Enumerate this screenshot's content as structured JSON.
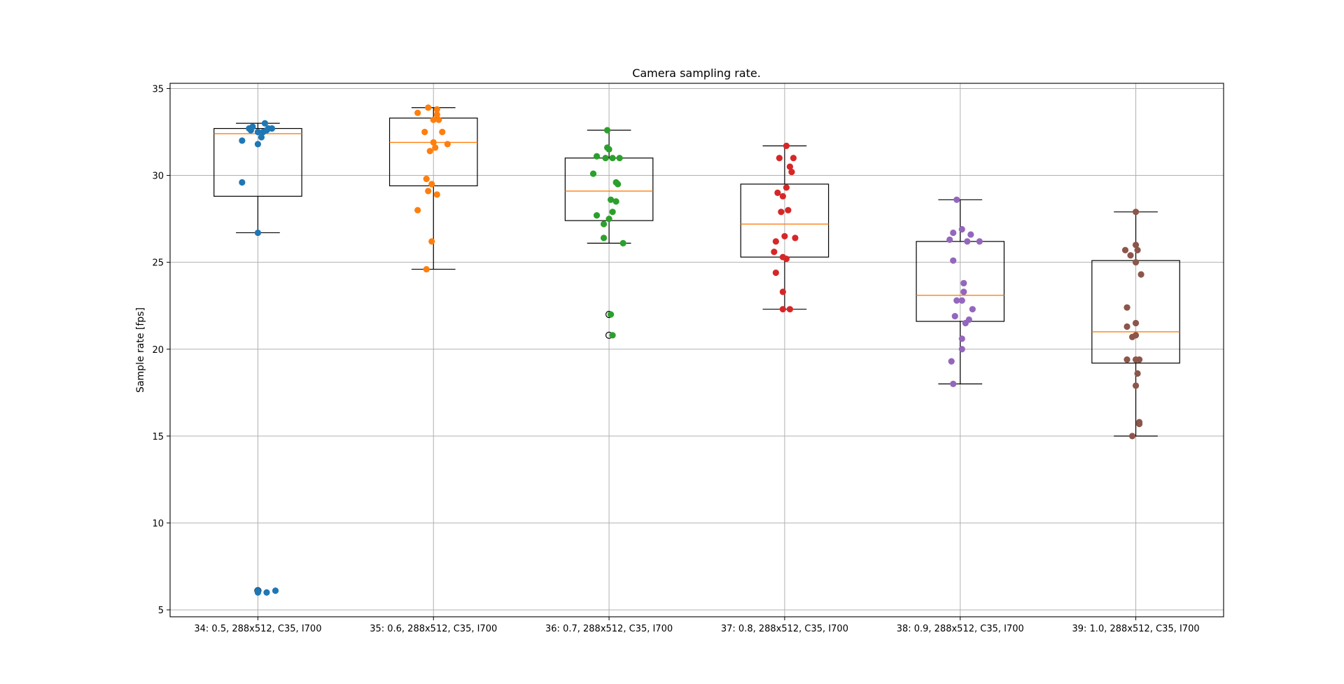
{
  "chart_data": {
    "type": "box",
    "title": "Camera sampling rate.",
    "ylabel": "Sample rate [fps]",
    "xlabel": "",
    "ylim": [
      4.6,
      35.3
    ],
    "yticks": [
      5,
      10,
      15,
      20,
      25,
      30,
      35
    ],
    "grid": true,
    "series": [
      {
        "label": "34: 0.5, 288x512, C35, I700",
        "color": "#1f77b4",
        "box": {
          "whislo": 26.7,
          "q1": 28.8,
          "med": 32.4,
          "q3": 32.7,
          "whishi": 33.0
        },
        "fliers": [
          6.1
        ],
        "points": [
          {
            "jx": -0.09,
            "y": 32.0
          },
          {
            "jx": -0.09,
            "y": 29.6
          },
          {
            "jx": 0.0,
            "y": 26.7
          },
          {
            "jx": 0.0,
            "y": 31.8
          },
          {
            "jx": 0.02,
            "y": 32.2
          },
          {
            "jx": -0.05,
            "y": 32.7
          },
          {
            "jx": -0.03,
            "y": 32.8
          },
          {
            "jx": 0.0,
            "y": 32.5
          },
          {
            "jx": 0.03,
            "y": 32.5
          },
          {
            "jx": 0.06,
            "y": 32.7
          },
          {
            "jx": 0.04,
            "y": 33.0
          },
          {
            "jx": 0.08,
            "y": 32.7
          },
          {
            "jx": 0.05,
            "y": 32.6
          },
          {
            "jx": -0.04,
            "y": 32.6
          },
          {
            "jx": 0.0,
            "y": 6.1
          },
          {
            "jx": 0.0,
            "y": 6.0
          },
          {
            "jx": 0.05,
            "y": 6.0
          },
          {
            "jx": 0.1,
            "y": 6.1
          }
        ]
      },
      {
        "label": "35: 0.6, 288x512, C35, I700",
        "color": "#ff7f0e",
        "box": {
          "whislo": 24.6,
          "q1": 29.4,
          "med": 31.9,
          "q3": 33.3,
          "whishi": 33.9
        },
        "fliers": [],
        "points": [
          {
            "jx": -0.09,
            "y": 33.6
          },
          {
            "jx": -0.03,
            "y": 33.9
          },
          {
            "jx": 0.0,
            "y": 33.2
          },
          {
            "jx": 0.02,
            "y": 33.8
          },
          {
            "jx": 0.03,
            "y": 33.2
          },
          {
            "jx": 0.02,
            "y": 33.5
          },
          {
            "jx": -0.05,
            "y": 32.5
          },
          {
            "jx": 0.05,
            "y": 32.5
          },
          {
            "jx": 0.0,
            "y": 31.9
          },
          {
            "jx": 0.08,
            "y": 31.8
          },
          {
            "jx": 0.01,
            "y": 31.6
          },
          {
            "jx": -0.02,
            "y": 31.4
          },
          {
            "jx": -0.04,
            "y": 29.8
          },
          {
            "jx": -0.01,
            "y": 29.5
          },
          {
            "jx": -0.03,
            "y": 29.1
          },
          {
            "jx": 0.02,
            "y": 28.9
          },
          {
            "jx": -0.09,
            "y": 28.0
          },
          {
            "jx": -0.01,
            "y": 26.2
          },
          {
            "jx": -0.04,
            "y": 24.6
          }
        ]
      },
      {
        "label": "36: 0.7, 288x512, C35, I700",
        "color": "#2ca02c",
        "box": {
          "whislo": 26.1,
          "q1": 27.4,
          "med": 29.1,
          "q3": 31.0,
          "whishi": 32.6
        },
        "fliers": [
          22.0,
          20.8
        ],
        "points": [
          {
            "jx": -0.01,
            "y": 32.6
          },
          {
            "jx": -0.01,
            "y": 31.6
          },
          {
            "jx": 0.0,
            "y": 31.5
          },
          {
            "jx": -0.07,
            "y": 31.1
          },
          {
            "jx": -0.02,
            "y": 31.0
          },
          {
            "jx": 0.02,
            "y": 31.0
          },
          {
            "jx": 0.06,
            "y": 31.0
          },
          {
            "jx": -0.09,
            "y": 30.1
          },
          {
            "jx": 0.04,
            "y": 29.6
          },
          {
            "jx": 0.05,
            "y": 29.5
          },
          {
            "jx": 0.01,
            "y": 28.6
          },
          {
            "jx": 0.04,
            "y": 28.5
          },
          {
            "jx": 0.02,
            "y": 27.9
          },
          {
            "jx": -0.07,
            "y": 27.7
          },
          {
            "jx": 0.0,
            "y": 27.5
          },
          {
            "jx": -0.03,
            "y": 27.2
          },
          {
            "jx": -0.03,
            "y": 26.4
          },
          {
            "jx": 0.08,
            "y": 26.1
          },
          {
            "jx": 0.01,
            "y": 22.0
          },
          {
            "jx": 0.02,
            "y": 20.8
          }
        ]
      },
      {
        "label": "37: 0.8, 288x512, C35, I700",
        "color": "#d62728",
        "box": {
          "whislo": 22.3,
          "q1": 25.3,
          "med": 27.2,
          "q3": 29.5,
          "whishi": 31.7
        },
        "fliers": [],
        "points": [
          {
            "jx": 0.01,
            "y": 31.7
          },
          {
            "jx": -0.03,
            "y": 31.0
          },
          {
            "jx": 0.05,
            "y": 31.0
          },
          {
            "jx": 0.03,
            "y": 30.5
          },
          {
            "jx": 0.04,
            "y": 30.2
          },
          {
            "jx": 0.01,
            "y": 29.3
          },
          {
            "jx": -0.04,
            "y": 29.0
          },
          {
            "jx": -0.01,
            "y": 28.8
          },
          {
            "jx": 0.02,
            "y": 28.0
          },
          {
            "jx": -0.02,
            "y": 27.9
          },
          {
            "jx": 0.0,
            "y": 26.5
          },
          {
            "jx": 0.06,
            "y": 26.4
          },
          {
            "jx": -0.05,
            "y": 26.2
          },
          {
            "jx": -0.06,
            "y": 25.6
          },
          {
            "jx": -0.01,
            "y": 25.3
          },
          {
            "jx": 0.01,
            "y": 25.2
          },
          {
            "jx": -0.05,
            "y": 24.4
          },
          {
            "jx": -0.01,
            "y": 23.3
          },
          {
            "jx": -0.01,
            "y": 22.3
          },
          {
            "jx": 0.03,
            "y": 22.3
          }
        ]
      },
      {
        "label": "38: 0.9, 288x512, C35, I700",
        "color": "#9467bd",
        "box": {
          "whislo": 18.0,
          "q1": 21.6,
          "med": 23.1,
          "q3": 26.2,
          "whishi": 28.6
        },
        "fliers": [],
        "points": [
          {
            "jx": -0.02,
            "y": 28.6
          },
          {
            "jx": 0.01,
            "y": 26.9
          },
          {
            "jx": -0.04,
            "y": 26.7
          },
          {
            "jx": 0.06,
            "y": 26.6
          },
          {
            "jx": -0.06,
            "y": 26.3
          },
          {
            "jx": 0.04,
            "y": 26.2
          },
          {
            "jx": 0.11,
            "y": 26.2
          },
          {
            "jx": -0.04,
            "y": 25.1
          },
          {
            "jx": 0.02,
            "y": 23.8
          },
          {
            "jx": 0.02,
            "y": 23.3
          },
          {
            "jx": -0.02,
            "y": 22.8
          },
          {
            "jx": 0.01,
            "y": 22.8
          },
          {
            "jx": 0.07,
            "y": 22.3
          },
          {
            "jx": -0.03,
            "y": 21.9
          },
          {
            "jx": 0.05,
            "y": 21.7
          },
          {
            "jx": 0.03,
            "y": 21.5
          },
          {
            "jx": 0.01,
            "y": 20.6
          },
          {
            "jx": 0.01,
            "y": 20.0
          },
          {
            "jx": -0.05,
            "y": 19.3
          },
          {
            "jx": -0.04,
            "y": 18.0
          }
        ]
      },
      {
        "label": "39: 1.0, 288x512, C35, I700",
        "color": "#8c564b",
        "box": {
          "whislo": 15.0,
          "q1": 19.2,
          "med": 21.0,
          "q3": 25.1,
          "whishi": 27.9
        },
        "fliers": [],
        "points": [
          {
            "jx": 0.0,
            "y": 27.9
          },
          {
            "jx": -0.06,
            "y": 25.7
          },
          {
            "jx": 0.0,
            "y": 26.0
          },
          {
            "jx": 0.01,
            "y": 25.7
          },
          {
            "jx": -0.03,
            "y": 25.4
          },
          {
            "jx": 0.0,
            "y": 25.0
          },
          {
            "jx": 0.03,
            "y": 24.3
          },
          {
            "jx": -0.05,
            "y": 22.4
          },
          {
            "jx": 0.0,
            "y": 21.5
          },
          {
            "jx": -0.05,
            "y": 21.3
          },
          {
            "jx": 0.0,
            "y": 20.8
          },
          {
            "jx": -0.02,
            "y": 20.7
          },
          {
            "jx": -0.05,
            "y": 19.4
          },
          {
            "jx": 0.0,
            "y": 19.4
          },
          {
            "jx": 0.02,
            "y": 19.4
          },
          {
            "jx": 0.01,
            "y": 18.6
          },
          {
            "jx": 0.0,
            "y": 17.9
          },
          {
            "jx": 0.02,
            "y": 15.8
          },
          {
            "jx": 0.02,
            "y": 15.7
          },
          {
            "jx": -0.02,
            "y": 15.0
          }
        ]
      }
    ]
  }
}
